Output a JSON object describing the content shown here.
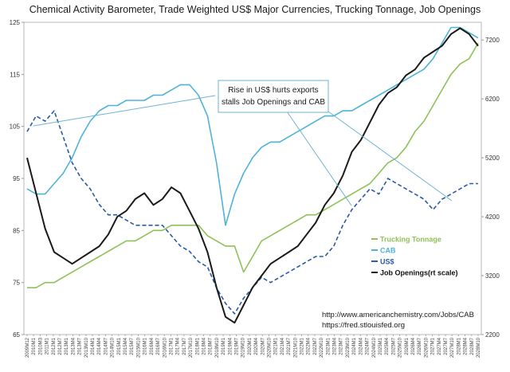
{
  "chart_data": {
    "type": "line",
    "title": "Chemical Activity Barometer, Trade Weighted US$ Major Currencies, Trucking Tonnage,  Job Openings",
    "left_axis": {
      "ticks": [
        65,
        75,
        85,
        95,
        105,
        115,
        125
      ],
      "ylim": [
        65,
        125
      ]
    },
    "right_axis": {
      "ticks": [
        2200,
        3200,
        4200,
        5200,
        6200,
        7200
      ],
      "ylim": [
        2200,
        7500
      ]
    },
    "x_tick_labels": [
      "2009M12",
      "2010M1",
      "2010M3",
      "2011M1",
      "2012M1",
      "2012M7",
      "2013M1",
      "2013M4",
      "2013M7",
      "2013M10",
      "2014M1",
      "2014M4",
      "2014M7",
      "2014M10",
      "2015M1",
      "2015M4",
      "2015M7",
      "2015M10",
      "2016M1",
      "2016M4",
      "2016M7",
      "2016M10",
      "2017M1",
      "2017M4",
      "2017M7",
      "2017M10",
      "2018M1",
      "2018M4",
      "2018M7",
      "2018M10",
      "2019M1",
      "2019M4",
      "2019M7",
      "2019M10",
      "2020M1",
      "2020M4",
      "2020M7",
      "2020M10",
      "2021M1",
      "2021M4",
      "2021M7",
      "2021M10",
      "2022M1",
      "2022M4",
      "2022M7",
      "2022M10",
      "2023M1",
      "2023M4",
      "2023M7",
      "2023M10",
      "2024M1",
      "2024M4",
      "2024M7",
      "2024M10",
      "2025M1",
      "2025M4",
      "2025M7",
      "2025M10",
      "2026M1",
      "2026M4",
      "2026M7",
      "2026M10",
      "2027M1",
      "2027M4",
      "2027M7",
      "2027M10",
      "2028M1",
      "2028M4",
      "2028M7",
      "2028M10"
    ],
    "series": [
      {
        "name": "Trucking Tonnage",
        "axis": "left",
        "color": "#8ec15a",
        "style": "solid",
        "x": [
          0,
          2,
          4,
          6,
          8,
          10,
          12,
          14,
          16,
          18,
          20,
          22,
          24,
          26,
          28,
          30,
          32,
          34,
          36,
          38,
          40,
          42,
          44,
          46,
          48,
          50,
          52,
          54,
          56,
          58,
          60,
          62,
          64,
          66,
          68,
          70,
          72,
          74,
          76,
          78,
          80,
          82,
          84,
          86,
          88,
          90,
          92,
          94,
          96,
          98,
          100
        ],
        "values": [
          74,
          74,
          75,
          75,
          76,
          77,
          78,
          79,
          80,
          81,
          82,
          83,
          83,
          84,
          85,
          85,
          86,
          86,
          86,
          86,
          84,
          83,
          82,
          82,
          77,
          80,
          83,
          84,
          85,
          86,
          87,
          88,
          88,
          89,
          90,
          91,
          92,
          93,
          94,
          96,
          98,
          99,
          101,
          104,
          106,
          109,
          112,
          115,
          117,
          118,
          121
        ]
      },
      {
        "name": "CAB",
        "axis": "left",
        "color": "#4fb3d9",
        "style": "solid",
        "x": [
          0,
          2,
          4,
          6,
          8,
          10,
          12,
          14,
          16,
          18,
          20,
          22,
          24,
          26,
          28,
          30,
          32,
          34,
          36,
          38,
          40,
          42,
          44,
          46,
          48,
          50,
          52,
          54,
          56,
          58,
          60,
          62,
          64,
          66,
          68,
          70,
          72,
          74,
          76,
          78,
          80,
          82,
          84,
          86,
          88,
          90,
          92,
          94,
          96,
          98,
          100
        ],
        "values": [
          93,
          92,
          92,
          94,
          96,
          99,
          103,
          106,
          108,
          109,
          109,
          110,
          110,
          110,
          111,
          111,
          112,
          113,
          113,
          111,
          107,
          98,
          86,
          92,
          96,
          99,
          101,
          102,
          102,
          103,
          104,
          105,
          106,
          107,
          107,
          108,
          108,
          109,
          110,
          111,
          112,
          113,
          114,
          115,
          116,
          118,
          121,
          124,
          124,
          123,
          122
        ]
      },
      {
        "name": "US$",
        "axis": "left",
        "color": "#2a5aa8",
        "style": "dashed",
        "x": [
          0,
          2,
          4,
          6,
          8,
          10,
          12,
          14,
          16,
          18,
          20,
          22,
          24,
          26,
          28,
          30,
          32,
          34,
          36,
          38,
          40,
          42,
          44,
          46,
          48,
          50,
          52,
          54,
          56,
          58,
          60,
          62,
          64,
          66,
          68,
          70,
          72,
          74,
          76,
          78,
          80,
          82,
          84,
          86,
          88,
          90,
          92,
          94,
          96,
          98,
          100
        ],
        "values": [
          104,
          107,
          106,
          108,
          103,
          98,
          95,
          93,
          90,
          88,
          88,
          87,
          86,
          86,
          86,
          86,
          84,
          82,
          81,
          79,
          78,
          74,
          71,
          69,
          72,
          74,
          76,
          75,
          76,
          77,
          78,
          79,
          80,
          80,
          82,
          86,
          89,
          91,
          93,
          92,
          95,
          94,
          93,
          92,
          91,
          89,
          91,
          92,
          93,
          94,
          94
        ]
      },
      {
        "name": "Job Openings(rt scale)",
        "axis": "right",
        "color": "#1a1a1a",
        "style": "solid",
        "x": [
          0,
          2,
          4,
          6,
          8,
          10,
          12,
          14,
          16,
          18,
          20,
          22,
          24,
          26,
          28,
          30,
          32,
          34,
          36,
          38,
          40,
          42,
          44,
          46,
          48,
          50,
          52,
          54,
          56,
          58,
          60,
          62,
          64,
          66,
          68,
          70,
          72,
          74,
          76,
          78,
          80,
          82,
          84,
          86,
          88,
          90,
          92,
          94,
          96,
          98,
          100
        ],
        "values": [
          5200,
          4600,
          4000,
          3600,
          3500,
          3400,
          3500,
          3600,
          3700,
          3900,
          4200,
          4300,
          4500,
          4600,
          4400,
          4500,
          4700,
          4600,
          4300,
          4000,
          3600,
          3000,
          2500,
          2400,
          2700,
          3000,
          3200,
          3400,
          3500,
          3600,
          3700,
          3900,
          4100,
          4400,
          4600,
          4900,
          5300,
          5500,
          5800,
          6100,
          6300,
          6400,
          6600,
          6700,
          6900,
          7000,
          7100,
          7300,
          7400,
          7300,
          7100
        ]
      }
    ],
    "legend": [
      {
        "name": "Trucking Tonnage",
        "color": "#8ec15a"
      },
      {
        "name": "CAB",
        "color": "#4fb3d9"
      },
      {
        "name": "US$",
        "color": "#2a5aa8"
      },
      {
        "name": "Job Openings(rt scale)",
        "color": "#1a1a1a"
      }
    ],
    "annotation": {
      "line1": "Rise in US$ hurts exports",
      "line2": "stalls Job Openings and CAB"
    },
    "source_lines": [
      "http://www.americanchemistry.com/Jobs/CAB",
      "https://fred.stlouisfed.org"
    ],
    "grid": false,
    "legend_position": "lower-right"
  }
}
